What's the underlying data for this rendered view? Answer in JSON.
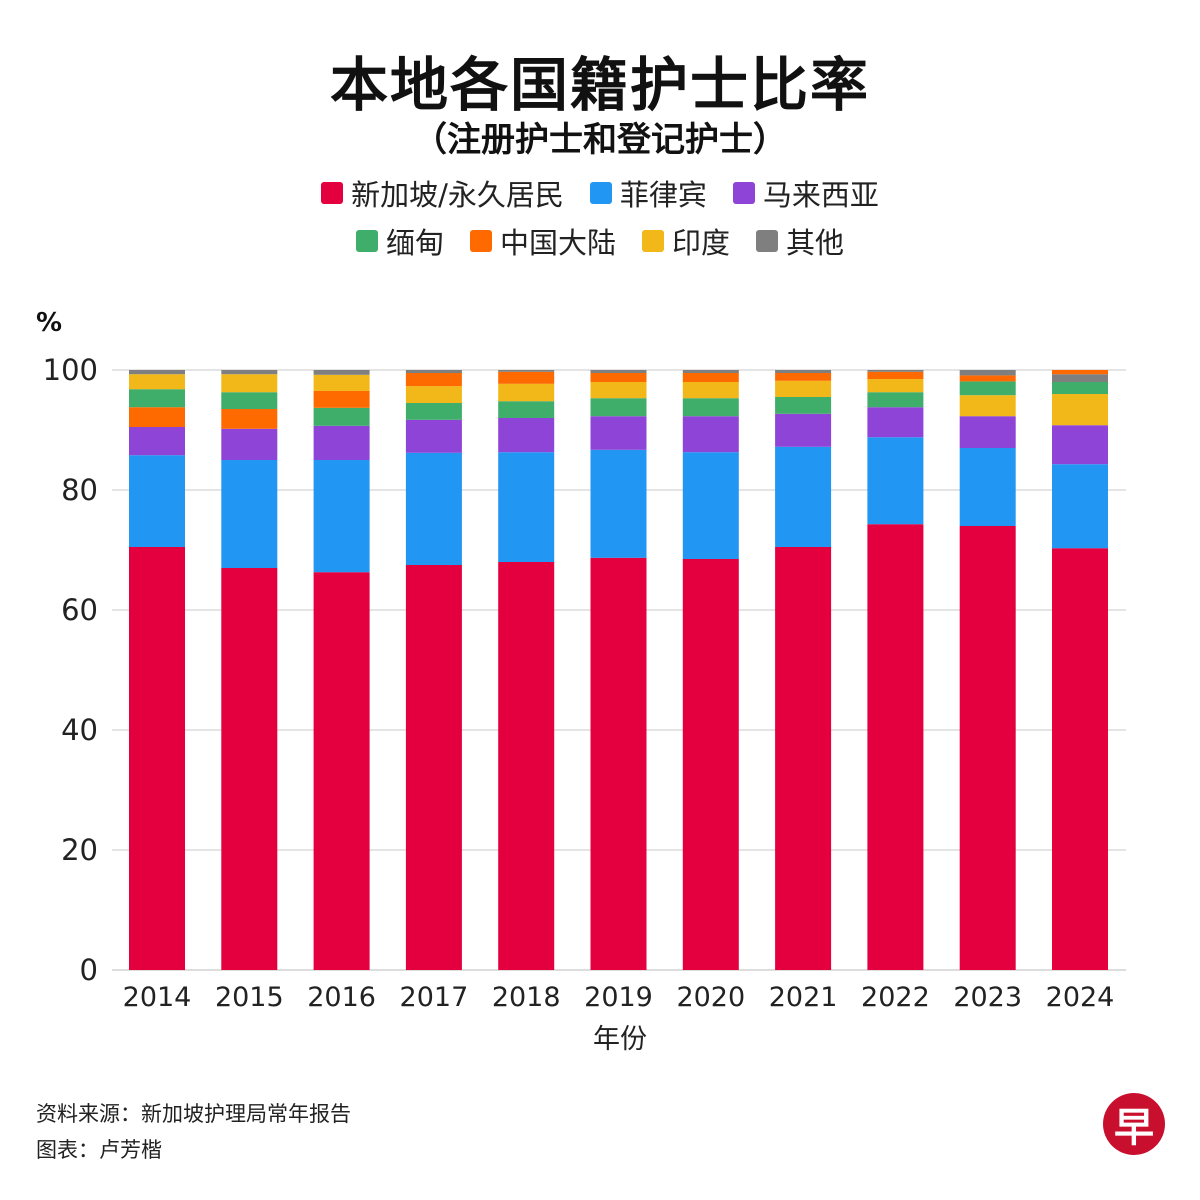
{
  "header": {
    "title": "本地各国籍护士比率",
    "subtitle": "（注册护士和登记护士）"
  },
  "legend": [
    {
      "key": "sg",
      "label": "新加坡/永久居民",
      "color": "#e4003f"
    },
    {
      "key": "ph",
      "label": "菲律宾",
      "color": "#2196f3"
    },
    {
      "key": "my",
      "label": "马来西亚",
      "color": "#8e44d6"
    },
    {
      "key": "mm",
      "label": "缅甸",
      "color": "#3fae6a"
    },
    {
      "key": "cn",
      "label": "中国大陆",
      "color": "#ff6a00"
    },
    {
      "key": "in",
      "label": "印度",
      "color": "#f2b718"
    },
    {
      "key": "ot",
      "label": "其他",
      "color": "#7f7f7f"
    }
  ],
  "footer": {
    "source": "资料来源：新加坡护理局常年报告",
    "credit": "图表：卢芳楷",
    "logo_char": "早"
  },
  "chart_data": {
    "type": "bar",
    "stacked": true,
    "title": "本地各国籍护士比率",
    "subtitle": "（注册护士和登记护士）",
    "xlabel": "年份",
    "ylabel": "%",
    "ylim": [
      0,
      100
    ],
    "yticks": [
      0,
      20,
      40,
      60,
      80,
      100
    ],
    "grid": true,
    "legend_position": "top-center",
    "categories": [
      "2014",
      "2015",
      "2016",
      "2017",
      "2018",
      "2019",
      "2020",
      "2021",
      "2022",
      "2023",
      "2024"
    ],
    "series": [
      {
        "key": "sg",
        "name": "新加坡/永久居民",
        "values": [
          70.5,
          67.0,
          66.3,
          67.5,
          68.0,
          68.7,
          68.5,
          70.5,
          74.3,
          74.0,
          70.3
        ]
      },
      {
        "key": "ph",
        "name": "菲律宾",
        "values": [
          15.3,
          18.0,
          18.7,
          18.7,
          18.3,
          18.0,
          17.8,
          16.7,
          14.5,
          13.0,
          14.0
        ]
      },
      {
        "key": "my",
        "name": "马来西亚",
        "values": [
          4.7,
          5.2,
          5.7,
          5.5,
          5.7,
          5.6,
          6.0,
          5.5,
          5.0,
          5.3,
          6.5
        ]
      },
      {
        "key": "mm",
        "name": "缅甸",
        "values": [
          3.0,
          2.8,
          3.0,
          2.8,
          2.8,
          3.0,
          3.0,
          2.8,
          2.5,
          2.3,
          2.0
        ]
      },
      {
        "key": "cn",
        "name": "中国大陆",
        "values": [
          3.3,
          3.3,
          2.8,
          2.2,
          2.0,
          1.5,
          1.5,
          1.3,
          1.2,
          1.0,
          0.7
        ]
      },
      {
        "key": "in",
        "name": "印度",
        "values": [
          2.5,
          3.0,
          2.7,
          2.8,
          2.9,
          2.7,
          2.7,
          2.7,
          2.2,
          3.5,
          5.2
        ]
      },
      {
        "key": "ot",
        "name": "其他",
        "values": [
          0.7,
          0.7,
          0.8,
          0.5,
          0.3,
          0.5,
          0.5,
          0.5,
          0.3,
          0.9,
          1.3
        ]
      }
    ],
    "stack_order": [
      [
        "sg",
        "ph",
        "my",
        "cn",
        "mm",
        "in",
        "ot"
      ],
      [
        "sg",
        "ph",
        "my",
        "cn",
        "mm",
        "in",
        "ot"
      ],
      [
        "sg",
        "ph",
        "my",
        "mm",
        "cn",
        "in",
        "ot"
      ],
      [
        "sg",
        "ph",
        "my",
        "mm",
        "in",
        "cn",
        "ot"
      ],
      [
        "sg",
        "ph",
        "my",
        "mm",
        "in",
        "cn",
        "ot"
      ],
      [
        "sg",
        "ph",
        "my",
        "mm",
        "in",
        "cn",
        "ot"
      ],
      [
        "sg",
        "ph",
        "my",
        "mm",
        "in",
        "cn",
        "ot"
      ],
      [
        "sg",
        "ph",
        "my",
        "mm",
        "in",
        "cn",
        "ot"
      ],
      [
        "sg",
        "ph",
        "my",
        "mm",
        "in",
        "cn",
        "ot"
      ],
      [
        "sg",
        "ph",
        "my",
        "in",
        "mm",
        "cn",
        "ot"
      ],
      [
        "sg",
        "ph",
        "my",
        "in",
        "mm",
        "ot",
        "cn"
      ]
    ]
  }
}
